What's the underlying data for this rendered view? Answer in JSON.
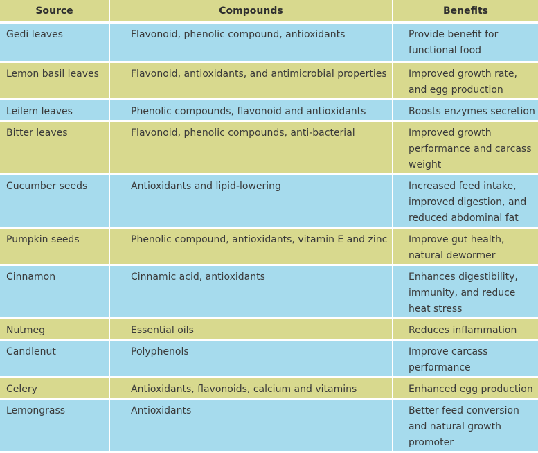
{
  "colors": {
    "header": "#d8d98e",
    "blue_row": "#a6dbed",
    "olive_row": "#d8d98e"
  },
  "table": {
    "headers": [
      "Source",
      "Compounds",
      "Benefits"
    ],
    "rows": [
      {
        "source": "Gedi leaves",
        "compounds": "Flavonoid, phenolic compound, antioxidants",
        "benefits": "Provide benefit for functional food",
        "color": "blue"
      },
      {
        "source": "Lemon basil leaves",
        "compounds": "Flavonoid, antioxidants, and antimicrobial properties",
        "benefits": "Improved growth rate, and egg production",
        "color": "olive"
      },
      {
        "source": "Leilem leaves",
        "compounds": "Phenolic compounds, flavonoid and antioxidants",
        "benefits": "Boosts enzymes secretion",
        "color": "blue"
      },
      {
        "source": "Bitter leaves",
        "compounds": "Flavonoid, phenolic compounds, anti-bacterial",
        "benefits": "Improved growth performance and carcass weight",
        "color": "olive"
      },
      {
        "source": "Cucumber seeds",
        "compounds": "Antioxidants and lipid-lowering",
        "benefits": "Increased feed intake, improved digestion, and reduced abdominal fat",
        "color": "blue"
      },
      {
        "source": "Pumpkin seeds",
        "compounds": "Phenolic compound, antioxidants, vitamin E and zinc",
        "benefits": "Improve gut health, natural dewormer",
        "color": "olive"
      },
      {
        "source": "Cinnamon",
        "compounds": "Cinnamic acid, antioxidants",
        "benefits": "Enhances digestibility, immunity, and reduce heat stress",
        "color": "blue"
      },
      {
        "source": "Nutmeg",
        "compounds": "Essential oils",
        "benefits": "Reduces inflammation",
        "color": "olive"
      },
      {
        "source": "Candlenut",
        "compounds": "Polyphenols",
        "benefits": "Improve carcass performance",
        "color": "blue"
      },
      {
        "source": "Celery",
        "compounds": "Antioxidants, flavonoids, calcium and vitamins",
        "benefits": "Enhanced egg production",
        "color": "olive"
      },
      {
        "source": "Lemongrass",
        "compounds": "Antioxidants",
        "benefits": "Better feed conversion and natural growth promoter",
        "color": "blue"
      }
    ]
  }
}
